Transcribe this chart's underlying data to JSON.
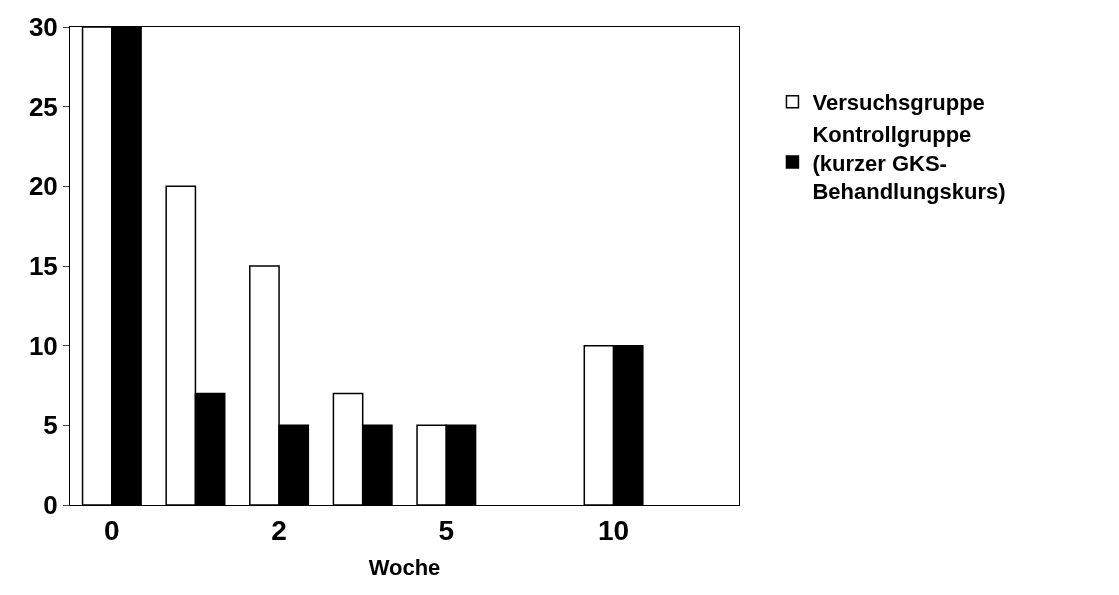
{
  "chart_data": {
    "type": "bar",
    "xlabel": "Woche",
    "categories": [
      "0",
      null,
      "2",
      null,
      "5",
      null,
      "10",
      null
    ],
    "series": [
      {
        "name": "Versuchsgruppe",
        "color": "#ffffff",
        "values": [
          30,
          20,
          15,
          7,
          5,
          null,
          10,
          null
        ]
      },
      {
        "name": "Kontrollgruppe\n(kurzer GKS-\nBehandlungskurs)",
        "color": "#000000",
        "values": [
          30,
          7,
          5,
          5,
          5,
          null,
          10,
          null
        ]
      }
    ],
    "ylim": [
      0,
      30
    ],
    "yticks": [
      0,
      5,
      10,
      15,
      20,
      25,
      30
    ],
    "legend": "right"
  }
}
